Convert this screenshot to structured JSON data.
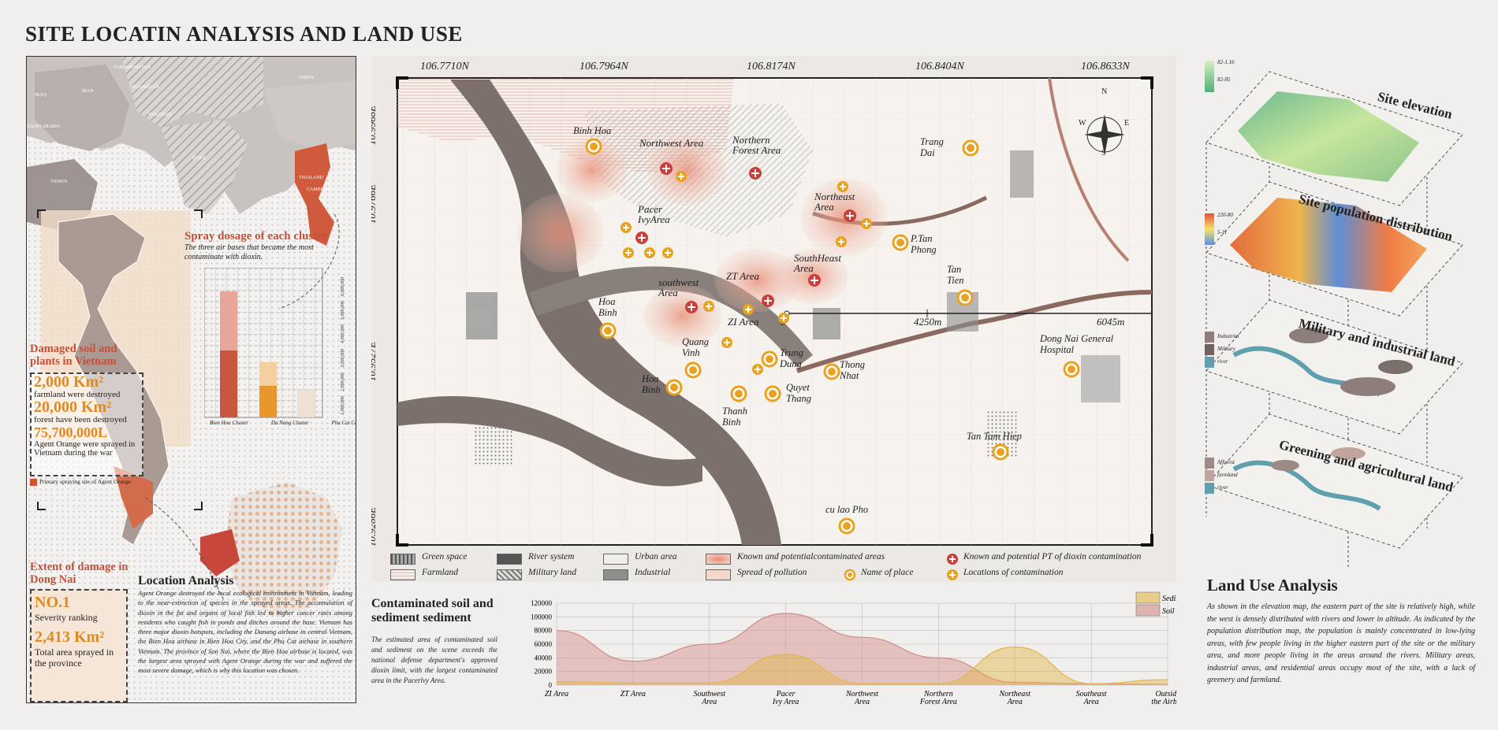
{
  "title": "SITE LOCATIN ANALYSIS AND LAND USE",
  "left": {
    "world_countries": [
      "TURKMENISTAN",
      "IRAQ",
      "IRAN",
      "AFGANISTAN",
      "CHINA",
      "PAKISTAN",
      "SAUDI ARABIA",
      "INDIA",
      "OMAN",
      "YEMEN",
      "THAILAND",
      "CAMBODIA"
    ],
    "spray_title": "Spray dosage of each cluster",
    "spray_desc": "The three air bases that became the most contaminate with dioxin.",
    "spray_axis": [
      "1,000,000",
      "2,000,000",
      "3,000,000",
      "4,000,000",
      "5,000,000",
      "6,000,000"
    ],
    "clusters": [
      "Bien Hoa Cluster",
      "Da Nang Cluster",
      "Phu Cat Cluster"
    ],
    "damaged_title": "Damaged soil and plants in Vietnam",
    "stat1_value": "2,000 Km²",
    "stat1_label": "farmland were destroyed",
    "stat2_value": "20,000 Km²",
    "stat2_label": "forest have been destroyed",
    "stat3_value": "75,700,000L",
    "stat3_label": "Agent Orange were sprayed in Vietnam during the war",
    "legend_primary": "Primary spraying site of Agent Orange",
    "extent_title": "Extent of damage in Dong Nai",
    "no1": "NO.1",
    "severity": "Severity ranking",
    "area_value": "2,413 Km²",
    "area_label": "Total area sprayed in the province",
    "location_title": "Location Analysis",
    "location_text": "Agent Orange destroyed the local ecological environment in Vietnam, leading to the near-extinction of species in the sprayed areas. The accumulation of dioxin in the fat and organs of local fish led to higher cancer rates among residents who caught fish in ponds and ditches around the base. Vietnam has three major dioxin hotspots, including the Danang airbase in central Vietnam, the Bien Hoa airbase in Bien Hoa City, and the Phu Cat airbase in southern Vietnam. The province of Son Nai, where the Bien Hoa airbase is located, was the largest area sprayed with Agent Orange during the war and suffered the most severe damage, which is why this location was chosen."
  },
  "map": {
    "lon_labels": [
      "106.7710N",
      "106.7964N",
      "106.8174N",
      "106.8404N",
      "106.8633N"
    ],
    "lat_labels": [
      "10.9968E",
      "10.9766E",
      "10.9527E",
      "10.9286E"
    ],
    "compass": {
      "n": "N",
      "s": "S",
      "e": "E",
      "w": "W"
    },
    "scale": [
      "0",
      "4250m",
      "6045m"
    ],
    "areas": [
      {
        "name": "Northwest Area"
      },
      {
        "name": "Northern Forest Area"
      },
      {
        "name": "Pacer IvyArea"
      },
      {
        "name": "Northeast Area"
      },
      {
        "name": "ZT Area"
      },
      {
        "name": "SouthHeast Area"
      },
      {
        "name": "southwest Area"
      },
      {
        "name": "ZI Area"
      }
    ],
    "places": [
      {
        "name": "Binh Hoa"
      },
      {
        "name": "Trang Dai"
      },
      {
        "name": "P.Tan Phong"
      },
      {
        "name": "Tan Tien"
      },
      {
        "name": "Hoa Binh"
      },
      {
        "name": "Quang Vinh"
      },
      {
        "name": "Trung Dung"
      },
      {
        "name": "Thong Nhat"
      },
      {
        "name": "Hoa Binh"
      },
      {
        "name": "Quyet Thang"
      },
      {
        "name": "Thanh Binh"
      },
      {
        "name": "Dong Nai General Hospital"
      },
      {
        "name": "Tan Tam Hiep"
      },
      {
        "name": "cu lao Pho"
      }
    ]
  },
  "legend": [
    {
      "label": "Green space",
      "color": "#a9a9a9"
    },
    {
      "label": "Farmland",
      "color": "#efd8cf"
    },
    {
      "label": "River system",
      "color": "#555555"
    },
    {
      "label": "Military land",
      "color": "#9a9a9a"
    },
    {
      "label": "Urban area",
      "color": "#f2eee9"
    },
    {
      "label": "Industrial",
      "color": "#8d8d8d"
    },
    {
      "label": "Known and potentialcontaminated areas",
      "color": "#e9a994"
    },
    {
      "label": "Spread of pollution",
      "color": "#f3d6cc"
    },
    {
      "label": "Name of place",
      "color": "#e8a21f"
    },
    {
      "label": "Known and potential PT of dioxin contamination",
      "color": "#c9403a"
    },
    {
      "label": "Locations of contamination",
      "color": "#e8a21f"
    }
  ],
  "sediment": {
    "title": "Contaminated soil and sediment sediment",
    "text": "The estimated area of contaminated soil and sediment on the scene exceeds the national defense department's approved dioxin limit, with the largest contaminated area in the Pacerlvy Area."
  },
  "chart_data": {
    "type": "area",
    "categories": [
      "ZI Area",
      "ZT Area",
      "Southwest Area",
      "Pacer Ivy Area",
      "Northwest Area",
      "Northern Forest Area",
      "Northeast Area",
      "Southeast Area",
      "Outside the Airbas"
    ],
    "ylim": [
      0,
      120000
    ],
    "yticks": [
      "0",
      "20000",
      "40000",
      "60000",
      "80000",
      "100000",
      "120000"
    ],
    "series": [
      {
        "name": "Soil",
        "color": "#d28a86",
        "values": [
          80000,
          35000,
          60000,
          105000,
          70000,
          40000,
          4000,
          2000,
          1000
        ]
      },
      {
        "name": "Sediment",
        "color": "#e2b647",
        "values": [
          5000,
          3000,
          3000,
          45000,
          2000,
          2000,
          56000,
          2000,
          8000
        ]
      }
    ]
  },
  "right": {
    "layers": [
      {
        "title": "Site elevation",
        "legend": [
          "82-1.16",
          "82-85"
        ]
      },
      {
        "title": "Site population distribution",
        "legend": [
          "220-80",
          "5-11"
        ]
      },
      {
        "title": "Military and industrial land",
        "legend": [
          "Industrial",
          "Military",
          "river"
        ]
      },
      {
        "title": "Greening and agricultural land",
        "legend": [
          "Afforest",
          "farmland",
          "river"
        ]
      }
    ],
    "land_title": "Land Use Analysis",
    "land_text": "As shown in the elevation map, the eastern part of the site is relatively high, while the west is densely distributed with rivers and lower in altitude. As indicated by the population distribution map, the population is mainly concentrated in low-lying areas, with few people living in the higher eastern part of the site or the military area, and more people living in the areas around the rivers. Military areas, industrial areas, and residential areas occupy most of the site, with a lack of greenery and farmland."
  }
}
